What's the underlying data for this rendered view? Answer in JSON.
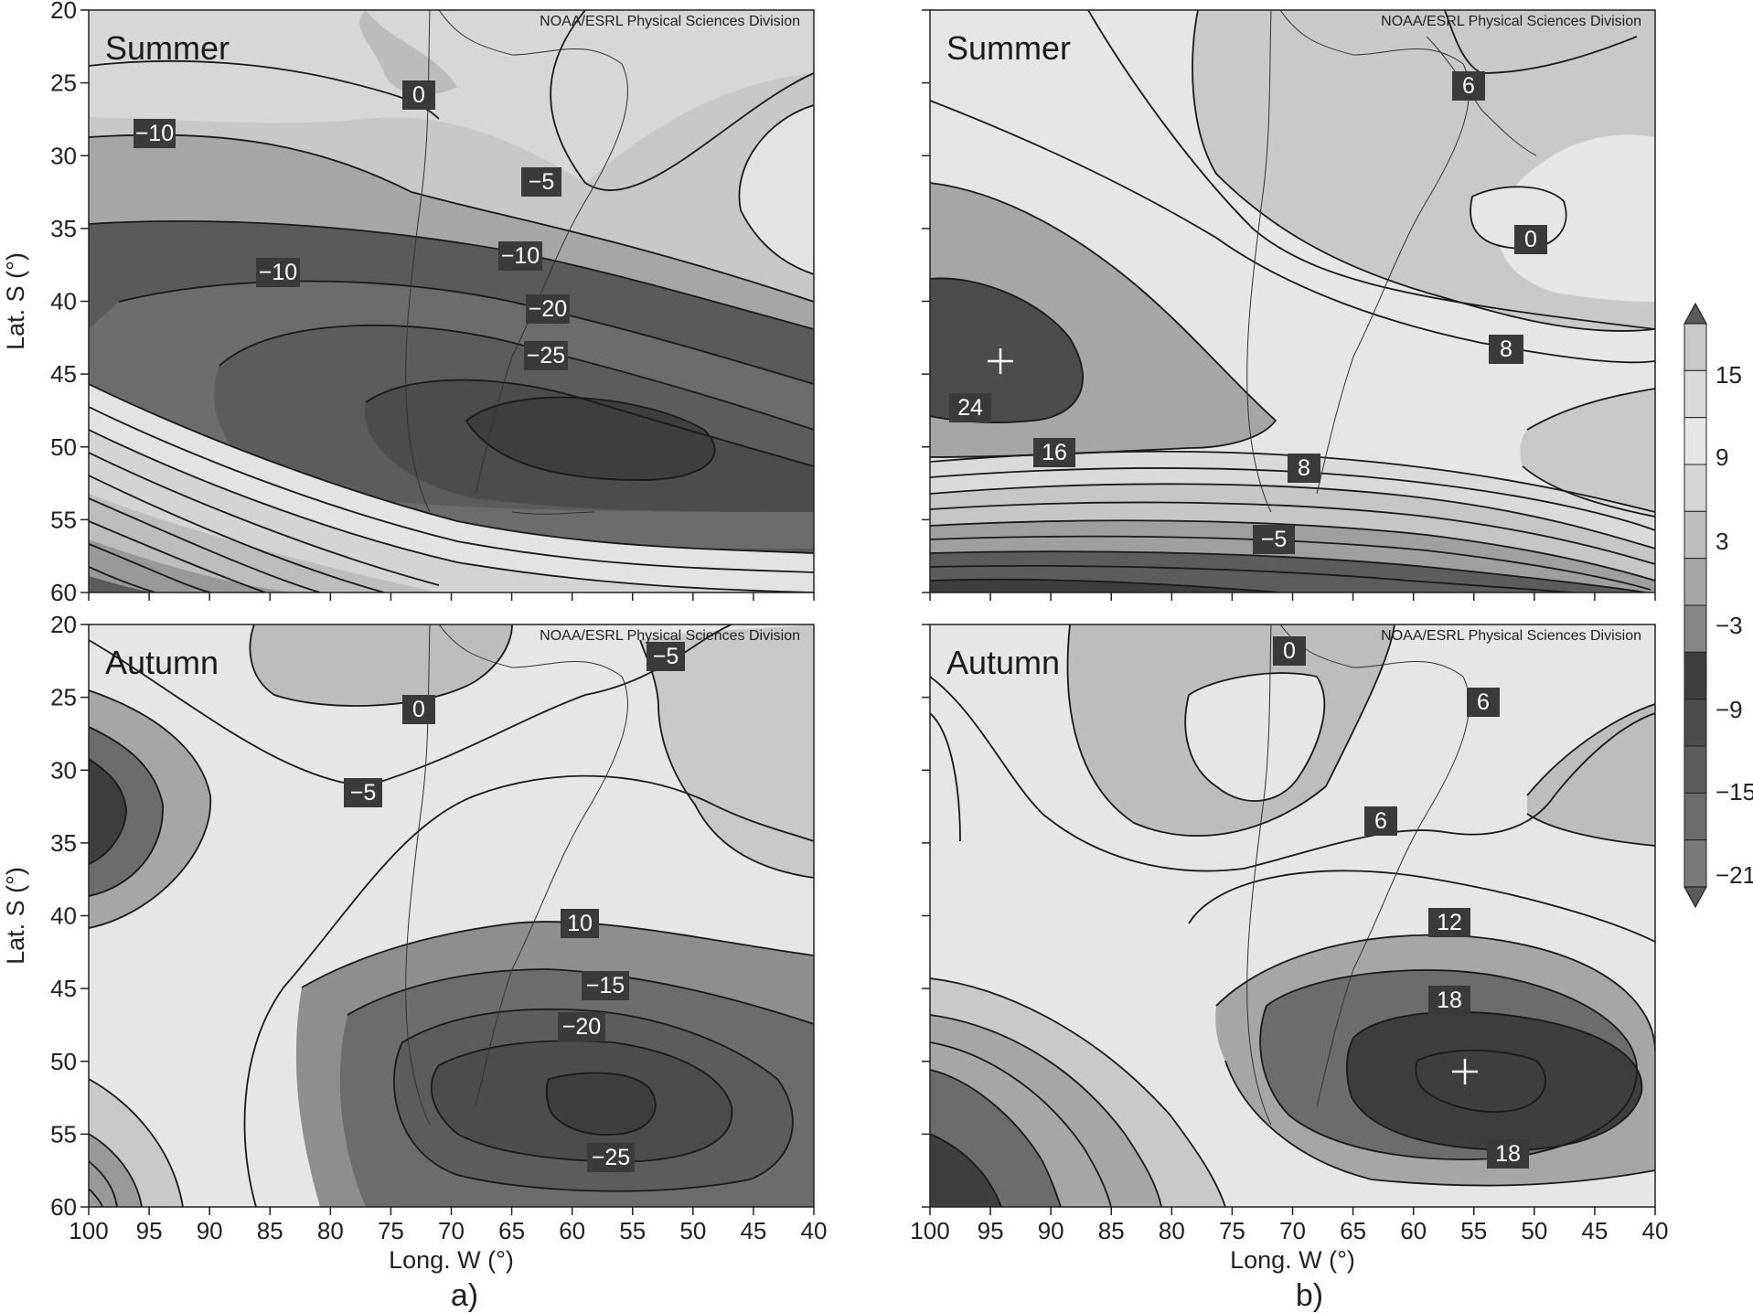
{
  "credit": "NOAA/ESRL Physical Sciences Division",
  "axes": {
    "ylabel": "Lat. S (°)",
    "xlabel": "Long. W (°)",
    "yticks": [
      "20",
      "25",
      "30",
      "35",
      "40",
      "45",
      "50",
      "55",
      "60"
    ],
    "xticks": [
      "100",
      "95",
      "90",
      "85",
      "80",
      "75",
      "70",
      "65",
      "60",
      "55",
      "50",
      "45",
      "40"
    ]
  },
  "colorbar": {
    "labels": [
      "15",
      "9",
      "3",
      "−3",
      "−9",
      "−15",
      "−21"
    ],
    "colors": [
      "#5a5a5a",
      "#c9c9c9",
      "#dadada",
      "#e6e6e6",
      "#d6d6d6",
      "#bdbdbd",
      "#a6a6a6",
      "#858585",
      "#3e3e3e",
      "#4c4c4c",
      "#5c5c5c",
      "#6c6c6c",
      "#7a7a7a",
      "#5a5a5a"
    ]
  },
  "panels": [
    {
      "id": "a-summer",
      "season": "Summer",
      "contour_labels": [
        {
          "text": "0"
        },
        {
          "text": "−10"
        },
        {
          "text": "−5"
        },
        {
          "text": "−10"
        },
        {
          "text": "−10"
        },
        {
          "text": "−20"
        },
        {
          "text": "−25"
        }
      ]
    },
    {
      "id": "b-summer",
      "season": "Summer",
      "contour_labels": [
        {
          "text": "6"
        },
        {
          "text": "0"
        },
        {
          "text": "8"
        },
        {
          "text": "24"
        },
        {
          "text": "16"
        },
        {
          "text": "8"
        },
        {
          "text": "−5"
        }
      ]
    },
    {
      "id": "a-autumn",
      "season": "Autumn",
      "contour_labels": [
        {
          "text": "0"
        },
        {
          "text": "−5"
        },
        {
          "text": "−5"
        },
        {
          "text": "10"
        },
        {
          "text": "−15"
        },
        {
          "text": "−20"
        },
        {
          "text": "−25"
        }
      ]
    },
    {
      "id": "b-autumn",
      "season": "Autumn",
      "contour_labels": [
        {
          "text": "0"
        },
        {
          "text": "6"
        },
        {
          "text": "6"
        },
        {
          "text": "12"
        },
        {
          "text": "18"
        },
        {
          "text": "18"
        }
      ]
    }
  ],
  "panel_letters": {
    "left": "a)",
    "right": "b)"
  }
}
